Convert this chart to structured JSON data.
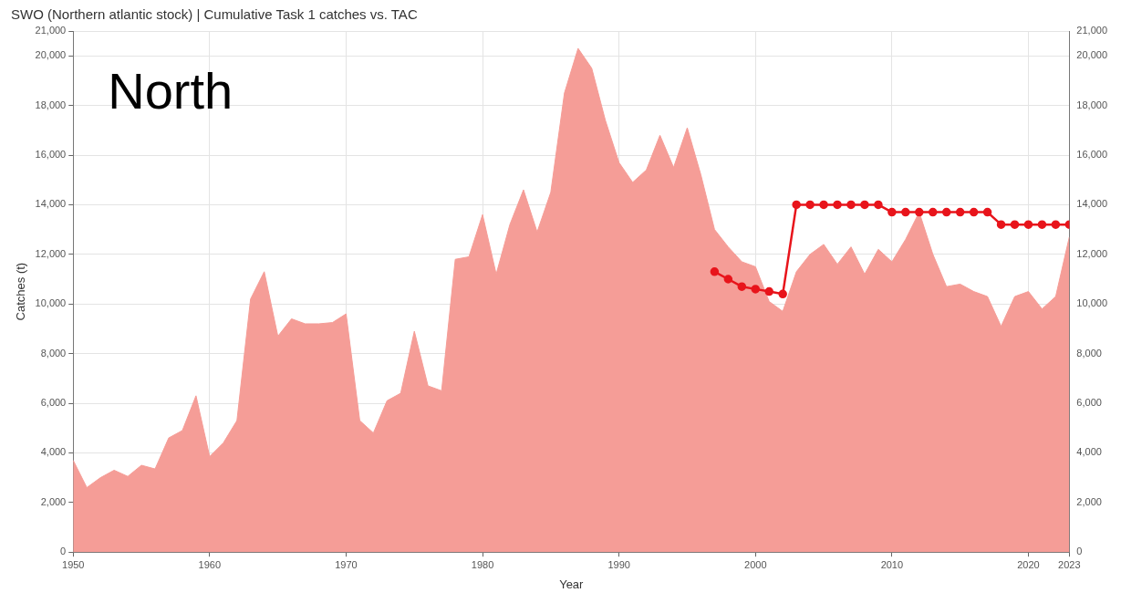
{
  "chart_data": {
    "type": "area",
    "title": "SWO (Northern atlantic stock) | Cumulative Task 1 catches vs. TAC",
    "xlabel": "Year",
    "ylabel": "Catches (t)",
    "annotations": [
      "North"
    ],
    "x": [
      1950,
      1951,
      1952,
      1953,
      1954,
      1955,
      1956,
      1957,
      1958,
      1959,
      1960,
      1961,
      1962,
      1963,
      1964,
      1965,
      1966,
      1967,
      1968,
      1969,
      1970,
      1971,
      1972,
      1973,
      1974,
      1975,
      1976,
      1977,
      1978,
      1979,
      1980,
      1981,
      1982,
      1983,
      1984,
      1985,
      1986,
      1987,
      1988,
      1989,
      1990,
      1991,
      1992,
      1993,
      1994,
      1995,
      1996,
      1997,
      1998,
      1999,
      2000,
      2001,
      2002,
      2003,
      2004,
      2005,
      2006,
      2007,
      2008,
      2009,
      2010,
      2011,
      2012,
      2013,
      2014,
      2015,
      2016,
      2017,
      2018,
      2019,
      2020,
      2021,
      2022,
      2023
    ],
    "series": [
      {
        "type": "area",
        "color": "#f59d97",
        "values": [
          3700,
          2600,
          3000,
          3300,
          3050,
          3500,
          3350,
          4600,
          4900,
          6300,
          3850,
          4400,
          5300,
          10200,
          11300,
          8700,
          9400,
          9200,
          9200,
          9250,
          9600,
          5300,
          4800,
          6100,
          6400,
          8900,
          6700,
          6500,
          11800,
          11900,
          13600,
          11200,
          13200,
          14600,
          12900,
          14500,
          18500,
          20300,
          19500,
          17400,
          15700,
          14900,
          15400,
          16800,
          15500,
          17100,
          15200,
          13000,
          12300,
          11700,
          11500,
          10100,
          9700,
          11300,
          12000,
          12400,
          11600,
          12300,
          11200,
          12200,
          11700,
          12600,
          13700,
          12000,
          10700,
          10800,
          10500,
          10300,
          9100,
          10300,
          10500,
          9800,
          10300,
          12700
        ]
      },
      {
        "type": "line",
        "color": "#e8141b",
        "marker": "circle",
        "x": [
          1997,
          1998,
          1999,
          2000,
          2001,
          2002,
          2003,
          2004,
          2005,
          2006,
          2007,
          2008,
          2009,
          2010,
          2011,
          2012,
          2013,
          2014,
          2015,
          2016,
          2017,
          2018,
          2019,
          2020,
          2021,
          2022,
          2023
        ],
        "values": [
          11300,
          11000,
          10700,
          10600,
          10500,
          10400,
          14000,
          14000,
          14000,
          14000,
          14000,
          14000,
          14000,
          13700,
          13700,
          13700,
          13700,
          13700,
          13700,
          13700,
          13700,
          13200,
          13200,
          13200,
          13200,
          13200,
          13200
        ]
      }
    ],
    "xlim": [
      1950,
      2023
    ],
    "xticks": [
      1950,
      1960,
      1970,
      1980,
      1990,
      2000,
      2010,
      2020,
      2023
    ],
    "ylim": [
      0,
      21000
    ],
    "yticks": [
      0,
      {
        "value": 2000,
        "label": "2,000"
      },
      {
        "value": 4000,
        "label": "4,000"
      },
      {
        "value": 6000,
        "label": "6,000"
      },
      {
        "value": 8000,
        "label": "8,000"
      },
      {
        "value": 10000,
        "label": "10,000"
      },
      {
        "value": 12000,
        "label": "12,000"
      },
      {
        "value": 14000,
        "label": "14,000"
      },
      {
        "value": 16000,
        "label": "16,000"
      },
      {
        "value": 18000,
        "label": "18,000"
      },
      {
        "value": 20000,
        "label": "20,000"
      },
      {
        "value": 21000,
        "label": "21,000"
      }
    ],
    "y2lim": [
      0,
      21000
    ],
    "y2ticks": [
      0,
      {
        "value": 2000,
        "label": "2,000"
      },
      {
        "value": 4000,
        "label": "4,000"
      },
      {
        "value": 6000,
        "label": "6,000"
      },
      {
        "value": 8000,
        "label": "8,000"
      },
      {
        "value": 10000,
        "label": "10,000"
      },
      {
        "value": 12000,
        "label": "12,000"
      },
      {
        "value": 14000,
        "label": "14,000"
      },
      {
        "value": 16000,
        "label": "16,000"
      },
      {
        "value": 18000,
        "label": "18,000"
      },
      {
        "value": 20000,
        "label": "20,000"
      },
      {
        "value": 21000,
        "label": "21,000"
      }
    ],
    "grid": true,
    "legend": false
  }
}
